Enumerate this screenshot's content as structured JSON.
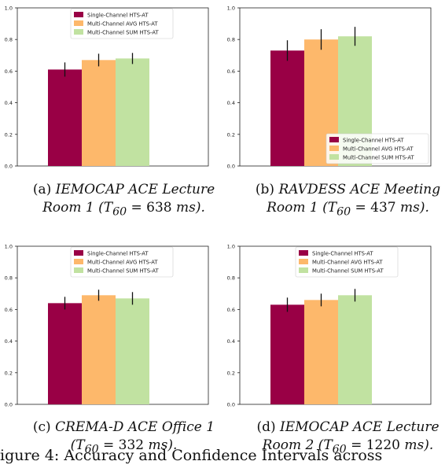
{
  "series_names": [
    "Single-Channel HTS-AT",
    "Multi-Channel AVG HTS-AT",
    "Multi-Channel SUM HTS-AT"
  ],
  "colors": [
    "#990045",
    "#fdb86b",
    "#c1e2a1"
  ],
  "chart_data": [
    {
      "type": "bar",
      "ylim": [
        0,
        1.0
      ],
      "yticks": [
        "0.0",
        "0.2",
        "0.4",
        "0.6",
        "0.8",
        "1.0"
      ],
      "legend": "top-left",
      "series": [
        {
          "name": "Single-Channel HTS-AT",
          "values": [
            0.61
          ],
          "error": [
            0.045
          ]
        },
        {
          "name": "Multi-Channel AVG HTS-AT",
          "values": [
            0.67
          ],
          "error": [
            0.04
          ]
        },
        {
          "name": "Multi-Channel SUM HTS-AT",
          "values": [
            0.68
          ],
          "error": [
            0.035
          ]
        }
      ]
    },
    {
      "type": "bar",
      "ylim": [
        0,
        1.0
      ],
      "yticks": [
        "0.0",
        "0.2",
        "0.4",
        "0.6",
        "0.8",
        "1.0"
      ],
      "legend": "bottom-right",
      "series": [
        {
          "name": "Single-Channel HTS-AT",
          "values": [
            0.73
          ],
          "error": [
            0.065
          ]
        },
        {
          "name": "Multi-Channel AVG HTS-AT",
          "values": [
            0.8
          ],
          "error": [
            0.065
          ]
        },
        {
          "name": "Multi-Channel SUM HTS-AT",
          "values": [
            0.82
          ],
          "error": [
            0.06
          ]
        }
      ]
    },
    {
      "type": "bar",
      "ylim": [
        0,
        1.0
      ],
      "yticks": [
        "0.0",
        "0.2",
        "0.4",
        "0.6",
        "0.8",
        "1.0"
      ],
      "legend": "top-left",
      "series": [
        {
          "name": "Single-Channel HTS-AT",
          "values": [
            0.64
          ],
          "error": [
            0.04
          ]
        },
        {
          "name": "Multi-Channel AVG HTS-AT",
          "values": [
            0.69
          ],
          "error": [
            0.035
          ]
        },
        {
          "name": "Multi-Channel SUM HTS-AT",
          "values": [
            0.67
          ],
          "error": [
            0.04
          ]
        }
      ]
    },
    {
      "type": "bar",
      "ylim": [
        0,
        1.0
      ],
      "yticks": [
        "0.0",
        "0.2",
        "0.4",
        "0.6",
        "0.8",
        "1.0"
      ],
      "legend": "top-center",
      "series": [
        {
          "name": "Single-Channel HTS-AT",
          "values": [
            0.63
          ],
          "error": [
            0.045
          ]
        },
        {
          "name": "Multi-Channel AVG HTS-AT",
          "values": [
            0.66
          ],
          "error": [
            0.04
          ]
        },
        {
          "name": "Multi-Channel SUM HTS-AT",
          "values": [
            0.69
          ],
          "error": [
            0.04
          ]
        }
      ]
    }
  ],
  "captions": [
    {
      "tag": "(a)",
      "title": "IEMOCAP ACE Lecture",
      "line2_pre": "Room 1 (",
      "t_base": "T",
      "t_sub": "60",
      "eq": " = 638 ",
      "unit": "ms",
      "end": ")."
    },
    {
      "tag": "(b)",
      "title": "RAVDESS ACE Meeting",
      "line2_pre": "Room 1 (",
      "t_base": "T",
      "t_sub": "60",
      "eq": " = 437 ",
      "unit": "ms",
      "end": ")."
    },
    {
      "tag": "(c)",
      "title": "CREMA-D ACE Office 1",
      "line2_pre": "(",
      "t_base": "T",
      "t_sub": "60",
      "eq": " = 332 ",
      "unit": "ms",
      "end": ")."
    },
    {
      "tag": "(d)",
      "title": "IEMOCAP ACE Lecture",
      "line2_pre": "Room 2 (",
      "t_base": "T",
      "t_sub": "60",
      "eq": " = 1220 ",
      "unit": "ms",
      "end": ")."
    }
  ],
  "figure_caption": "igure 4: Accuracy and Confidence Intervals across"
}
